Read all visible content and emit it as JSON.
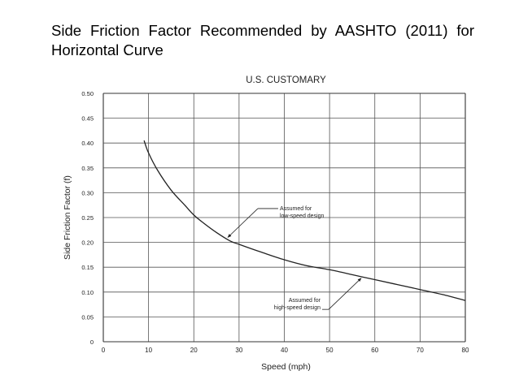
{
  "slide": {
    "title": "Side Friction Factor Recommended by AASHTO (2011) for Horizontal Curve"
  },
  "chart_data": {
    "type": "line",
    "title": "U.S. CUSTOMARY",
    "xlabel": "Speed (mph)",
    "ylabel": "Side Friction Factor (f)",
    "xlim": [
      0,
      80
    ],
    "ylim": [
      0,
      0.5
    ],
    "xticks": [
      0,
      10,
      20,
      30,
      40,
      50,
      60,
      70,
      80
    ],
    "yticks": [
      "0",
      "0.05",
      "0.10",
      "0.15",
      "0.20",
      "0.25",
      "0.30",
      "0.35",
      "0.40",
      "0.45",
      "0.50"
    ],
    "grid": true,
    "series": [
      {
        "x": [
          9,
          10,
          12,
          15,
          18,
          20,
          22,
          25,
          28,
          30,
          35,
          40,
          45,
          50,
          55,
          60,
          65,
          70,
          75,
          80
        ],
        "y": [
          0.405,
          0.38,
          0.345,
          0.305,
          0.275,
          0.255,
          0.24,
          0.22,
          0.203,
          0.196,
          0.18,
          0.165,
          0.153,
          0.145,
          0.135,
          0.125,
          0.115,
          0.105,
          0.095,
          0.083
        ],
        "color": "#222222"
      }
    ],
    "annotations": [
      {
        "text": [
          "Assumed for",
          "low-speed design"
        ],
        "x": 39,
        "y": 0.255,
        "point_to": [
          27.5,
          0.21
        ]
      },
      {
        "text": [
          "Assumed for",
          "high-speed design"
        ],
        "x": 48,
        "y": 0.07,
        "point_to": [
          57,
          0.128
        ]
      }
    ]
  }
}
